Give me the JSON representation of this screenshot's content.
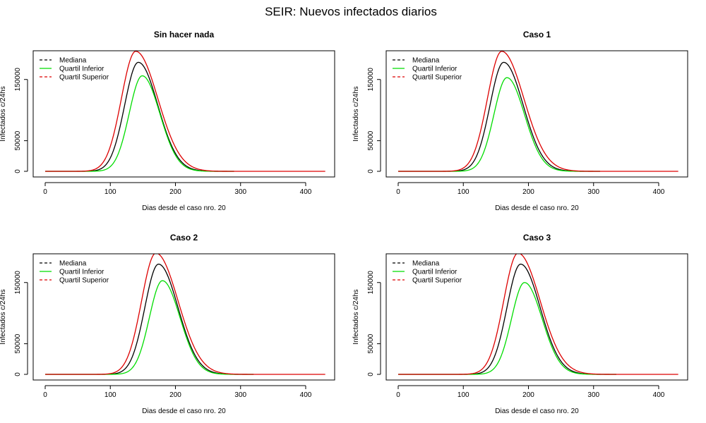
{
  "figure": {
    "title": "SEIR: Nuevos infectados diarios"
  },
  "colors": {
    "median": "#000000",
    "lower": "#00dd00",
    "upper": "#dd0000",
    "axis": "#000000",
    "background": "#ffffff"
  },
  "chart_data": [
    {
      "type": "line",
      "title": "Sin hacer nada",
      "xlabel": "Dias desde el caso nro. 20",
      "ylabel": "Infectados c/24hs",
      "xlim": [
        0,
        430
      ],
      "ylim": [
        0,
        190000
      ],
      "xticks": [
        0,
        100,
        200,
        300,
        400
      ],
      "yticks": [
        0,
        50000,
        150000
      ],
      "ytick_labels": [
        "0",
        "50000",
        "150000"
      ],
      "grid": false,
      "legend_position": "top-left",
      "legend": [
        "Mediana",
        "Quartil Inferior",
        "Quartil Superior"
      ],
      "series": [
        {
          "name": "Mediana",
          "peak_x": 143,
          "peak_y": 178000,
          "sigma_left": 21,
          "sigma_right": 30,
          "x_end": 290
        },
        {
          "name": "Quartil Inferior",
          "peak_x": 149,
          "peak_y": 156000,
          "sigma_left": 20,
          "sigma_right": 27,
          "x_end": 290
        },
        {
          "name": "Quartil Superior",
          "peak_x": 139,
          "peak_y": 196000,
          "sigma_left": 22,
          "sigma_right": 34,
          "x_end": 430
        }
      ]
    },
    {
      "type": "line",
      "title": "Caso 1",
      "xlabel": "Dias desde el caso nro. 20",
      "ylabel": "Infectados c/24hs",
      "xlim": [
        0,
        430
      ],
      "ylim": [
        0,
        190000
      ],
      "xticks": [
        0,
        100,
        200,
        300,
        400
      ],
      "yticks": [
        0,
        50000,
        150000
      ],
      "ytick_labels": [
        "0",
        "50000",
        "150000"
      ],
      "grid": false,
      "legend_position": "top-left",
      "legend": [
        "Mediana",
        "Quartil Inferior",
        "Quartil Superior"
      ],
      "series": [
        {
          "name": "Mediana",
          "peak_x": 162,
          "peak_y": 178000,
          "sigma_left": 21,
          "sigma_right": 30,
          "x_end": 310
        },
        {
          "name": "Quartil Inferior",
          "peak_x": 167,
          "peak_y": 153000,
          "sigma_left": 20,
          "sigma_right": 27,
          "x_end": 310
        },
        {
          "name": "Quartil Superior",
          "peak_x": 159,
          "peak_y": 196000,
          "sigma_left": 22,
          "sigma_right": 34,
          "x_end": 430
        }
      ]
    },
    {
      "type": "line",
      "title": "Caso 2",
      "xlabel": "Dias desde el caso nro. 20",
      "ylabel": "Infectados c/24hs",
      "xlim": [
        0,
        430
      ],
      "ylim": [
        0,
        190000
      ],
      "xticks": [
        0,
        100,
        200,
        300,
        400
      ],
      "yticks": [
        0,
        50000,
        150000
      ],
      "ytick_labels": [
        "0",
        "50000",
        "150000"
      ],
      "grid": false,
      "legend_position": "top-left",
      "legend": [
        "Mediana",
        "Quartil Inferior",
        "Quartil Superior"
      ],
      "series": [
        {
          "name": "Mediana",
          "peak_x": 174,
          "peak_y": 180000,
          "sigma_left": 21,
          "sigma_right": 30,
          "x_end": 320
        },
        {
          "name": "Quartil Inferior",
          "peak_x": 180,
          "peak_y": 153000,
          "sigma_left": 20,
          "sigma_right": 27,
          "x_end": 320
        },
        {
          "name": "Quartil Superior",
          "peak_x": 170,
          "peak_y": 198000,
          "sigma_left": 22,
          "sigma_right": 34,
          "x_end": 430
        }
      ]
    },
    {
      "type": "line",
      "title": "Caso 3",
      "xlabel": "Dias desde el caso nro. 20",
      "ylabel": "Infectados c/24hs",
      "xlim": [
        0,
        430
      ],
      "ylim": [
        0,
        190000
      ],
      "xticks": [
        0,
        100,
        200,
        300,
        400
      ],
      "yticks": [
        0,
        50000,
        150000
      ],
      "ytick_labels": [
        "0",
        "50000",
        "150000"
      ],
      "grid": false,
      "legend_position": "top-left",
      "legend": [
        "Mediana",
        "Quartil Inferior",
        "Quartil Superior"
      ],
      "series": [
        {
          "name": "Mediana",
          "peak_x": 188,
          "peak_y": 180000,
          "sigma_left": 21,
          "sigma_right": 30,
          "x_end": 335
        },
        {
          "name": "Quartil Inferior",
          "peak_x": 194,
          "peak_y": 150000,
          "sigma_left": 20,
          "sigma_right": 27,
          "x_end": 335
        },
        {
          "name": "Quartil Superior",
          "peak_x": 184,
          "peak_y": 198000,
          "sigma_left": 22,
          "sigma_right": 34,
          "x_end": 430
        }
      ]
    }
  ]
}
